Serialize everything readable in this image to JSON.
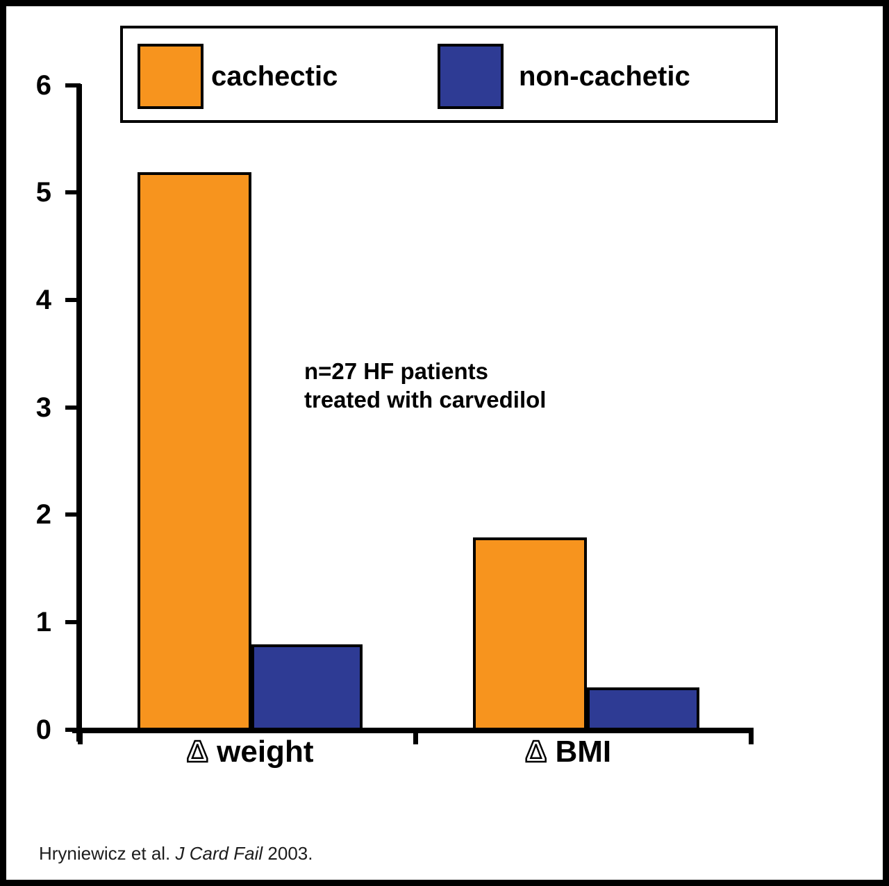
{
  "chart_data": {
    "type": "bar",
    "categories": [
      "Δ weight",
      "Δ BMI"
    ],
    "series": [
      {
        "name": "cachectic",
        "color": "#F7941E",
        "values": [
          5.2,
          1.8
        ]
      },
      {
        "name": "non-cachetic",
        "color": "#2E3B94",
        "values": [
          0.8,
          0.4
        ]
      }
    ],
    "title": "",
    "xlabel": "",
    "ylabel": "",
    "ylim": [
      0,
      6
    ],
    "yticks": [
      0,
      1,
      2,
      3,
      4,
      5,
      6
    ],
    "grid": false,
    "legend_position": "top",
    "annotation": "n=27 HF patients treated with carvedilol",
    "source": "Hryniewicz et al. J Card Fail 2003."
  },
  "legend": {
    "items": [
      {
        "label": "cachectic",
        "color": "#F7941E"
      },
      {
        "label": "non-cachetic",
        "color": "#2E3B94"
      }
    ]
  },
  "axis": {
    "ytick_labels": [
      "6",
      "5",
      "4",
      "3",
      "2",
      "1",
      "0"
    ]
  },
  "categories_split": [
    {
      "symbol": "Δ",
      "name": "weight"
    },
    {
      "symbol": "Δ",
      "name": "BMI"
    }
  ],
  "annotation": {
    "line1": "n=27 HF patients",
    "line2": "treated with carvedilol"
  },
  "citation": {
    "prefix": "Hryniewicz et al. ",
    "italic": "J Card Fail",
    "suffix": " 2003."
  },
  "colors": {
    "cachectic": "#F7941E",
    "non_cachectic": "#2E3B94",
    "axis": "#000000",
    "background": "#FFFFFF"
  }
}
